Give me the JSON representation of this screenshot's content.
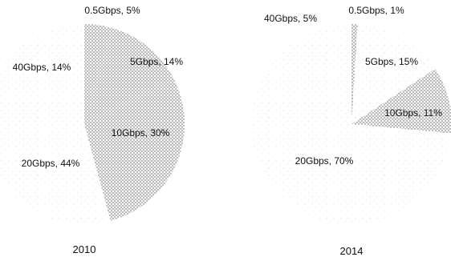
{
  "chart_data": [
    {
      "type": "pie",
      "title": "2010",
      "slices": [
        {
          "label": "0.5Gbps, 5%",
          "value": 5,
          "pattern": "dense"
        },
        {
          "label": "5Gbps, 14%",
          "value": 14,
          "pattern": "dense"
        },
        {
          "label": "10Gbps, 30%",
          "value": 30,
          "pattern": "dense"
        },
        {
          "label": "20Gbps, 44%",
          "value": 44,
          "pattern": "sparse"
        },
        {
          "label": "40Gbps, 14%",
          "value": 14,
          "pattern": "sparse"
        }
      ]
    },
    {
      "type": "pie",
      "title": "2014",
      "slices": [
        {
          "label": "0.5Gbps, 1%",
          "value": 1,
          "pattern": "dense"
        },
        {
          "label": "5Gbps, 15%",
          "value": 15,
          "pattern": "sparse"
        },
        {
          "label": "10Gbps, 11%",
          "value": 11,
          "pattern": "dense"
        },
        {
          "label": "20Gbps, 70%",
          "value": 70,
          "pattern": "sparse"
        },
        {
          "label": "40Gbps, 5%",
          "value": 5,
          "pattern": "sparse"
        }
      ]
    }
  ]
}
